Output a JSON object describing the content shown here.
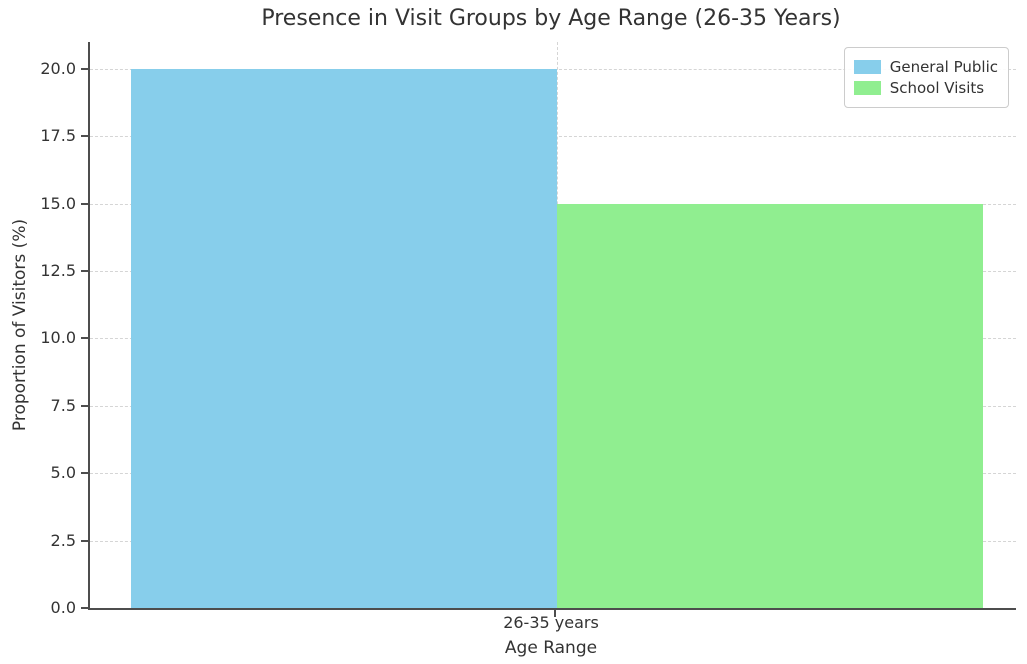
{
  "chart_data": {
    "type": "bar",
    "title": "Presence in Visit Groups by Age Range (26-35 Years)",
    "xlabel": "Age Range",
    "ylabel": "Proportion of Visitors (%)",
    "categories": [
      "26-35 years"
    ],
    "series": [
      {
        "name": "General Public",
        "values": [
          20.0
        ],
        "color": "#87CEEB"
      },
      {
        "name": "School Visits",
        "values": [
          15.0
        ],
        "color": "#90EE90"
      }
    ],
    "ylim": [
      0,
      21
    ],
    "yticks": [
      0.0,
      2.5,
      5.0,
      7.5,
      10.0,
      12.5,
      15.0,
      17.5,
      20.0
    ],
    "ytick_labels": [
      "0.0",
      "2.5",
      "5.0",
      "7.5",
      "10.0",
      "12.5",
      "15.0",
      "17.5",
      "20.0"
    ],
    "grid": true,
    "grid_style": "dashed",
    "legend_position": "upper right"
  },
  "colors": {
    "bar_blue": "#87CEEB",
    "bar_green": "#90EE90",
    "grid": "#d5d5d5",
    "spine": "#4d4d4d",
    "text": "#333333",
    "legend_border": "#cccccc",
    "background": "#ffffff"
  }
}
